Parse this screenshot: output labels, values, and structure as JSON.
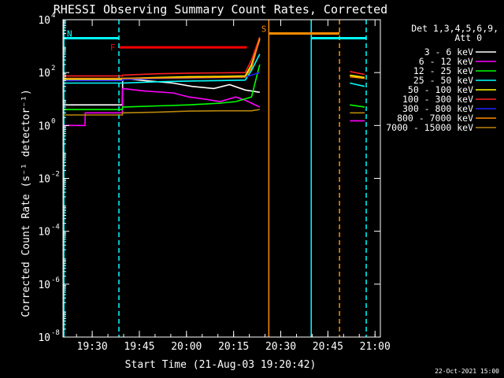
{
  "chart_data": {
    "type": "line",
    "title": "RHESSI Observing Summary Count Rates, Corrected",
    "xlabel": "Start Time (21-Aug-03 19:20:42)",
    "ylabel": "Corrected Count Rate (s⁻¹ detector⁻¹)",
    "x_ticks": [
      "19:30",
      "19:45",
      "20:00",
      "20:15",
      "20:30",
      "20:45",
      "21:00"
    ],
    "x_tick_minutes": [
      9.3,
      24.3,
      39.3,
      54.3,
      69.3,
      84.3,
      99.3
    ],
    "xlim_minutes": [
      0,
      101.0
    ],
    "y_scale": "log",
    "ylim": [
      1e-08,
      10000
    ],
    "y_tick_exponents": [
      4,
      2,
      0,
      -2,
      -4,
      -6,
      -8
    ],
    "legend_header": [
      "Det 1,3,4,5,6,9,",
      "Att 0"
    ],
    "legend_placement": "right",
    "footer_date": "22-Oct-2021 15:00",
    "series": [
      {
        "name": "3 - 6 keV",
        "color": "#ffffff",
        "x": [
          0,
          18.9,
          19.0,
          26,
          35,
          41,
          48,
          53,
          58,
          60,
          62.6
        ],
        "y": [
          6,
          6,
          60,
          50,
          40,
          30,
          25,
          35,
          22,
          20,
          18
        ]
      },
      {
        "name": "6 - 12 keV",
        "color": "#ff00ff",
        "x": [
          0,
          7,
          7.1,
          18.9,
          19.0,
          26,
          35,
          40,
          45,
          50,
          55,
          58,
          60,
          62.6
        ],
        "y": [
          1,
          1,
          3,
          3,
          25,
          20,
          17,
          12,
          10,
          8,
          12,
          9,
          7,
          5
        ]
      },
      {
        "name": "12 - 25 keV",
        "color": "#00ff00",
        "x": [
          0,
          18.9,
          19.0,
          30,
          40,
          50,
          55,
          60,
          62.6
        ],
        "y": [
          4,
          4,
          5,
          5.5,
          6,
          7,
          8,
          12,
          200
        ]
      },
      {
        "name": "25 - 50 keV",
        "color": "#00ffff",
        "x": [
          0,
          18.9,
          19.0,
          30,
          40,
          50,
          58,
          60,
          62.6
        ],
        "y": [
          40,
          40,
          40,
          45,
          48,
          50,
          52,
          120,
          500
        ]
      },
      {
        "name": "50 - 100 keV",
        "color": "#ffff00",
        "x": [
          0,
          18.9,
          19.0,
          30,
          40,
          50,
          58,
          60,
          62.6
        ],
        "y": [
          55,
          55,
          60,
          65,
          70,
          72,
          75,
          200,
          1800
        ]
      },
      {
        "name": "100 - 300 keV",
        "color": "#ff2020",
        "x": [
          0,
          18.9,
          19.0,
          30,
          40,
          50,
          58,
          60,
          62.6
        ],
        "y": [
          75,
          75,
          80,
          90,
          95,
          98,
          100,
          300,
          2200
        ]
      },
      {
        "name": "300 - 800 keV",
        "color": "#2020ff",
        "x": [
          0,
          18.9,
          19.0,
          30,
          40,
          50,
          58,
          60,
          62.6
        ],
        "y": [
          50,
          50,
          55,
          60,
          62,
          65,
          68,
          80,
          100
        ]
      },
      {
        "name": "800 - 7000 keV",
        "color": "#ff8c00",
        "x": [
          0,
          18.9,
          19.0,
          30,
          40,
          50,
          58,
          60,
          62.6
        ],
        "y": [
          60,
          60,
          60,
          62,
          64,
          66,
          68,
          150,
          2000
        ]
      },
      {
        "name": "7000 - 15000 keV",
        "color": "#b8860b",
        "x": [
          0,
          18.9,
          19.0,
          30,
          40,
          50,
          60,
          62.6
        ],
        "y": [
          2.5,
          2.5,
          3,
          3.2,
          3.5,
          3.6,
          3.6,
          4
        ]
      }
    ],
    "late_segments": [
      {
        "color": "#ff2020",
        "x": [
          91.3,
          96.0
        ],
        "y": [
          110,
          85
        ]
      },
      {
        "color": "#ffff00",
        "x": [
          91.3,
          96.0
        ],
        "y": [
          80,
          65
        ]
      },
      {
        "color": "#ff8c00",
        "x": [
          91.3,
          96.0
        ],
        "y": [
          70,
          60
        ]
      },
      {
        "color": "#00ffff",
        "x": [
          91.3,
          96.0
        ],
        "y": [
          40,
          30
        ]
      },
      {
        "color": "#00ff00",
        "x": [
          91.3,
          96.0
        ],
        "y": [
          6,
          5
        ]
      },
      {
        "color": "#b8860b",
        "x": [
          91.3,
          96.0
        ],
        "y": [
          3,
          3
        ]
      },
      {
        "color": "#ff00ff",
        "x": [
          91.3,
          96.0
        ],
        "y": [
          1.5,
          1.5
        ]
      }
    ],
    "state_bars": [
      {
        "label": "N",
        "color": "#00ffff",
        "x": [
          0,
          17.8
        ],
        "y": 2000
      },
      {
        "label": "F",
        "color": "#ff0000",
        "x": [
          18.0,
          58.5
        ],
        "y": 900
      },
      {
        "label": "S",
        "color": "#ff8c00",
        "x": [
          65.5,
          88.0
        ],
        "y": 3000
      },
      {
        "label": "",
        "color": "#00ffff",
        "x": [
          79.0,
          96.5
        ],
        "y": 2000
      }
    ],
    "vertical_lines": [
      {
        "color": "#00ffff",
        "style": "dashed",
        "x": 17.8
      },
      {
        "color": "#ff8c00",
        "style": "solid",
        "x": 65.5
      },
      {
        "color": "#00ffff",
        "style": "solid",
        "x": 79.0
      },
      {
        "color": "#ff8c00",
        "style": "dashed",
        "x": 88.0
      },
      {
        "color": "#00ffff",
        "style": "dashed",
        "x": 96.5
      },
      {
        "color": "#00ffff",
        "style": "solid",
        "x": 0.3
      }
    ]
  }
}
